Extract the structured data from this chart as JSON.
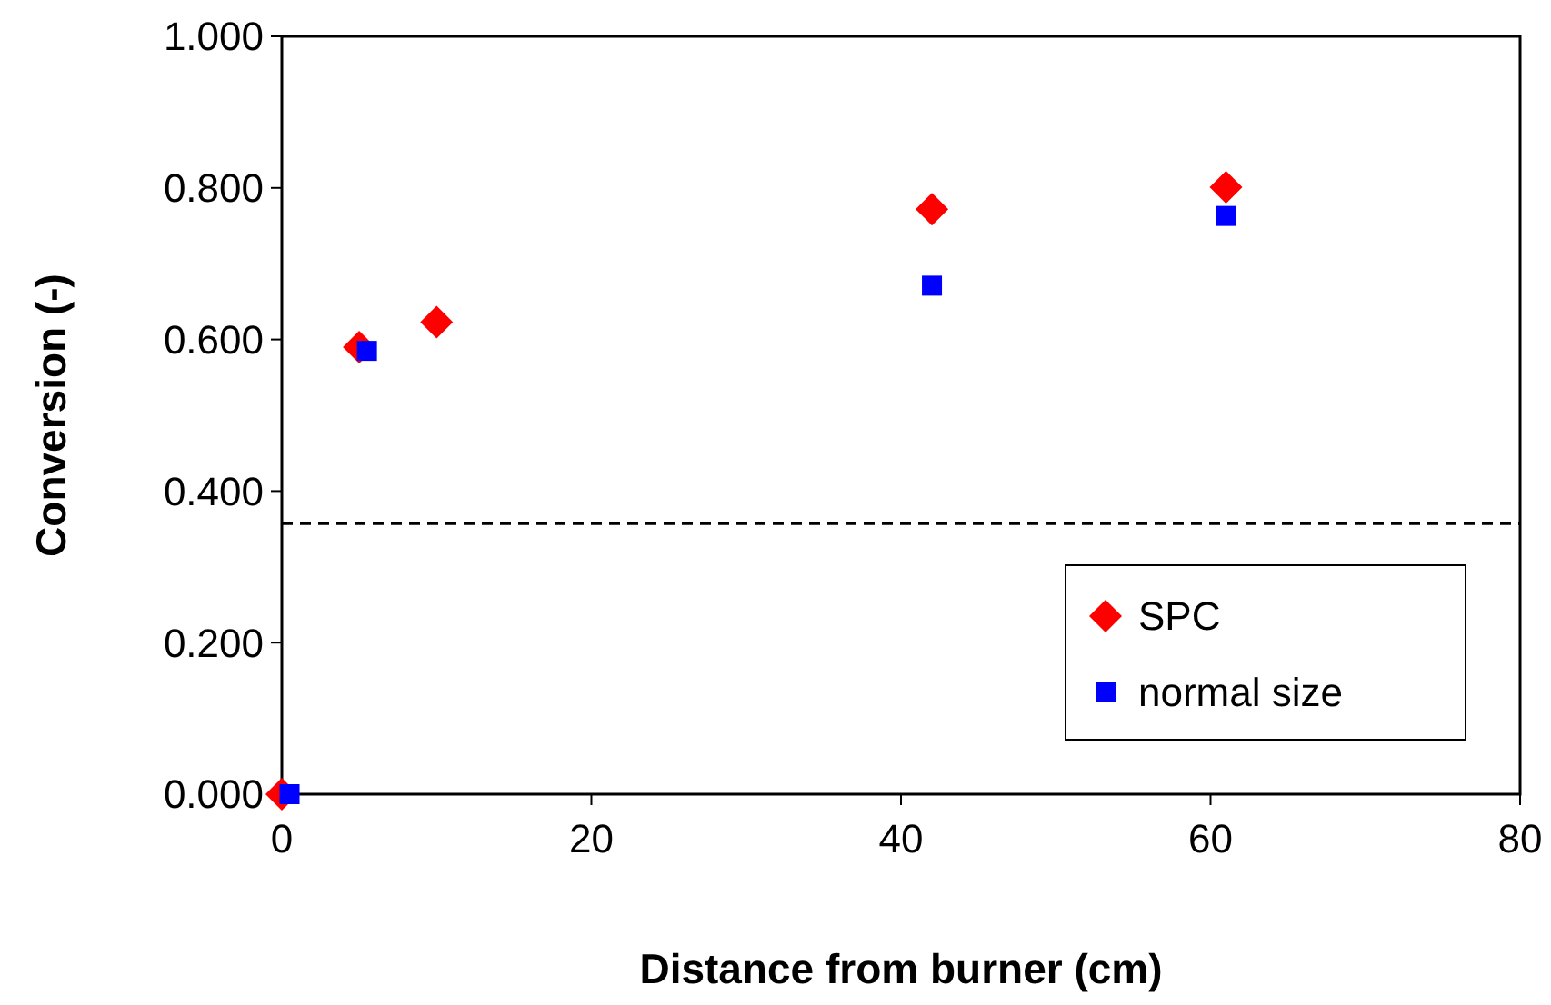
{
  "chart_data": {
    "type": "scatter",
    "xlabel": "Distance from burner (cm)",
    "ylabel": "Conversion (-)",
    "xlim": [
      0,
      80
    ],
    "xticks": [
      0,
      20,
      40,
      60,
      80
    ],
    "ylim": [
      0,
      1
    ],
    "yticks": [
      {
        "value": 0,
        "label": "0.000"
      },
      {
        "value": 0.2,
        "label": "0.200"
      },
      {
        "value": 0.4,
        "label": "0.400"
      },
      {
        "value": 0.6,
        "label": "0.600"
      },
      {
        "value": 0.8,
        "label": "0.800"
      },
      {
        "value": 1,
        "label": "1.000"
      }
    ],
    "series": [
      {
        "name": "SPC",
        "color": "#ff0000",
        "marker": "diamond",
        "x": [
          0,
          5,
          10,
          42,
          61
        ],
        "values": [
          0,
          0.59,
          0.623,
          0.772,
          0.801
        ]
      },
      {
        "name": "normal size",
        "color": "#0000ff",
        "marker": "square",
        "x": [
          0.5,
          5.5,
          42,
          61
        ],
        "values": [
          0,
          0.585,
          0.671,
          0.763
        ]
      }
    ],
    "ref_lines": [
      {
        "axis": "y",
        "value": 0.357,
        "line_style": "dashed",
        "color": "#000000"
      }
    ],
    "grid": false,
    "legend": "bottom right"
  }
}
